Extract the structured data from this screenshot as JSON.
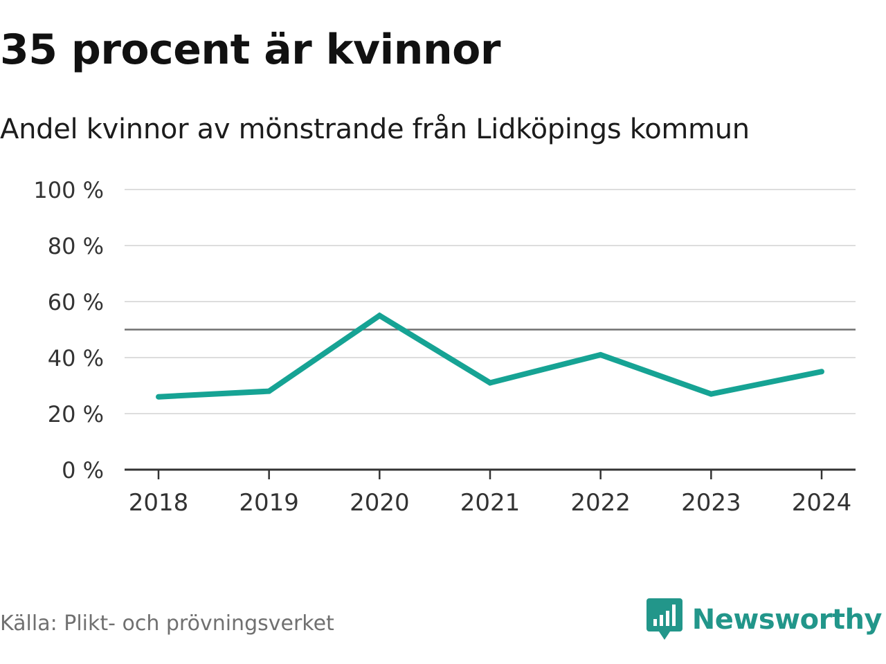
{
  "chart_data": {
    "type": "line",
    "title": "35 procent är kvinnor",
    "subtitle": "Andel kvinnor av mönstrande från Lidköpings kommun",
    "categories": [
      "2018",
      "2019",
      "2020",
      "2021",
      "2022",
      "2023",
      "2024"
    ],
    "series": [
      {
        "name": "Andel kvinnor",
        "values": [
          26,
          28,
          55,
          31,
          41,
          27,
          35
        ],
        "color": "#16a394"
      }
    ],
    "xlabel": "",
    "ylabel": "",
    "ylim": [
      0,
      100
    ],
    "yticks": [
      0,
      20,
      40,
      60,
      80,
      100
    ],
    "ytick_labels": [
      "0 %",
      "20 %",
      "40 %",
      "60 %",
      "80 %",
      "100 %"
    ],
    "reference_line": {
      "value": 50,
      "color": "#707070"
    },
    "grid": true,
    "grid_color": "#dddddd",
    "axis_color": "#333333"
  },
  "footer": {
    "source": "Källa: Plikt- och prövningsverket"
  },
  "brand": {
    "name": "Newsworthy",
    "icon": "newsworthy-logo-icon",
    "color": "#22968a"
  }
}
